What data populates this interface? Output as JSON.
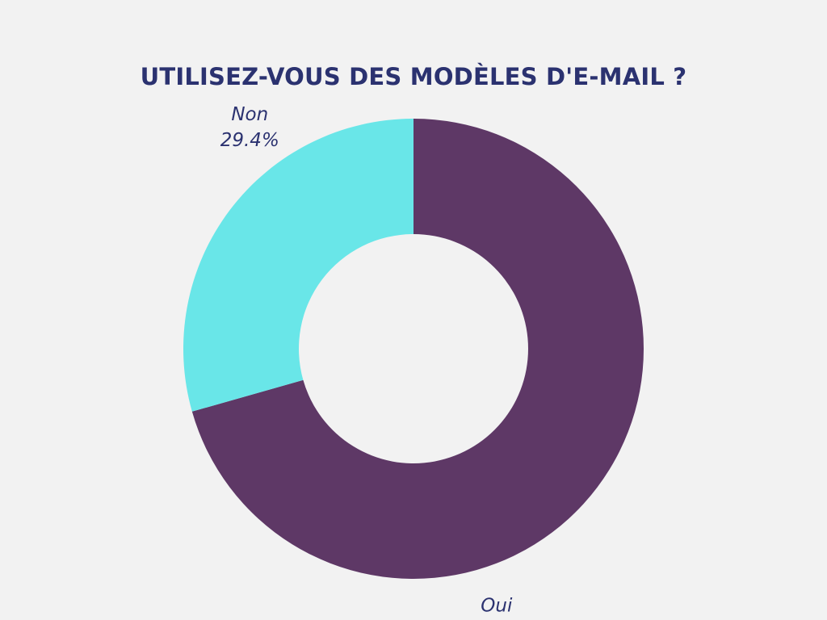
{
  "chart_data": {
    "type": "pie",
    "title": "UTILISEZ-VOUS DES MODÈLES D'E-MAIL ?",
    "donut": true,
    "slices": [
      {
        "label": "Oui",
        "value": 70.6,
        "value_label": "70.6%",
        "color": "#5e3866"
      },
      {
        "label": "Non",
        "value": 29.4,
        "value_label": "29.4%",
        "color": "#69e6e8"
      }
    ]
  },
  "colors": {
    "background": "#f2f2f2",
    "title": "#2b3270",
    "label": "#2b3270"
  }
}
